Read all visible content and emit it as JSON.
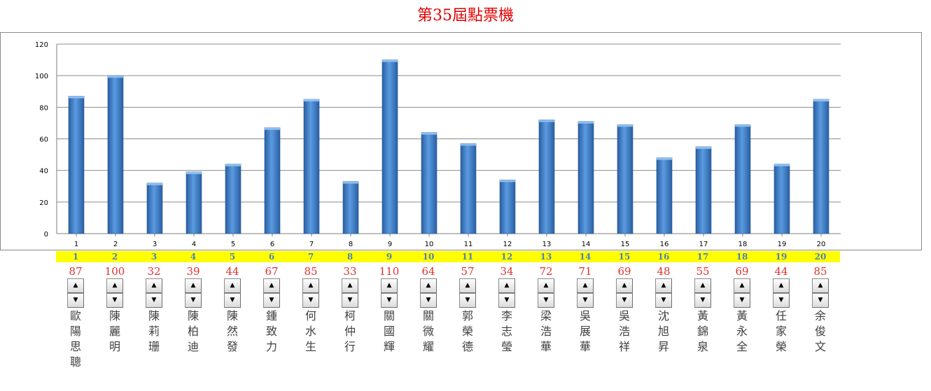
{
  "title": "第35屆點票機",
  "colors": {
    "bar": "#3f7fc8",
    "title": "#e00000",
    "votes": "#e03030",
    "highlight": "#ffff00",
    "number": "#4f81bd"
  },
  "icons": {
    "up": "▲",
    "down": "▼"
  },
  "chart_data": {
    "type": "bar",
    "categories": [
      "1",
      "2",
      "3",
      "4",
      "5",
      "6",
      "7",
      "8",
      "9",
      "10",
      "11",
      "12",
      "13",
      "14",
      "15",
      "16",
      "17",
      "18",
      "19",
      "20"
    ],
    "values": [
      87,
      100,
      32,
      39,
      44,
      67,
      85,
      33,
      110,
      64,
      57,
      34,
      72,
      71,
      69,
      48,
      55,
      69,
      44,
      85
    ],
    "ylim": [
      0,
      120
    ],
    "yticks": [
      0,
      20,
      40,
      60,
      80,
      100,
      120
    ],
    "grid": true,
    "legend": "none"
  },
  "candidates": [
    {
      "no": "1",
      "votes": "87",
      "name": [
        "歐",
        "陽",
        "思",
        "聰"
      ]
    },
    {
      "no": "2",
      "votes": "100",
      "name": [
        "陳",
        "麗",
        "明"
      ]
    },
    {
      "no": "3",
      "votes": "32",
      "name": [
        "陳",
        "莉",
        "珊"
      ]
    },
    {
      "no": "4",
      "votes": "39",
      "name": [
        "陳",
        "柏",
        "迪"
      ]
    },
    {
      "no": "5",
      "votes": "44",
      "name": [
        "陳",
        "然",
        "發"
      ]
    },
    {
      "no": "6",
      "votes": "67",
      "name": [
        "鍾",
        "致",
        "力"
      ]
    },
    {
      "no": "7",
      "votes": "85",
      "name": [
        "何",
        "水",
        "生"
      ]
    },
    {
      "no": "8",
      "votes": "33",
      "name": [
        "柯",
        "仲",
        "行"
      ]
    },
    {
      "no": "9",
      "votes": "110",
      "name": [
        "關",
        "國",
        "輝"
      ]
    },
    {
      "no": "10",
      "votes": "64",
      "name": [
        "關",
        "微",
        "耀"
      ]
    },
    {
      "no": "11",
      "votes": "57",
      "name": [
        "郭",
        "榮",
        "德"
      ]
    },
    {
      "no": "12",
      "votes": "34",
      "name": [
        "李",
        "志",
        "瑩"
      ]
    },
    {
      "no": "13",
      "votes": "72",
      "name": [
        "梁",
        "浩",
        "華"
      ]
    },
    {
      "no": "14",
      "votes": "71",
      "name": [
        "吳",
        "展",
        "華"
      ]
    },
    {
      "no": "15",
      "votes": "69",
      "name": [
        "吳",
        "浩",
        "祥"
      ]
    },
    {
      "no": "16",
      "votes": "48",
      "name": [
        "沈",
        "旭",
        "昇"
      ]
    },
    {
      "no": "17",
      "votes": "55",
      "name": [
        "黃",
        "錦",
        "泉"
      ]
    },
    {
      "no": "18",
      "votes": "69",
      "name": [
        "黃",
        "永",
        "全"
      ]
    },
    {
      "no": "19",
      "votes": "44",
      "name": [
        "任",
        "家",
        "榮"
      ]
    },
    {
      "no": "20",
      "votes": "85",
      "name": [
        "余",
        "俊",
        "文"
      ]
    }
  ]
}
